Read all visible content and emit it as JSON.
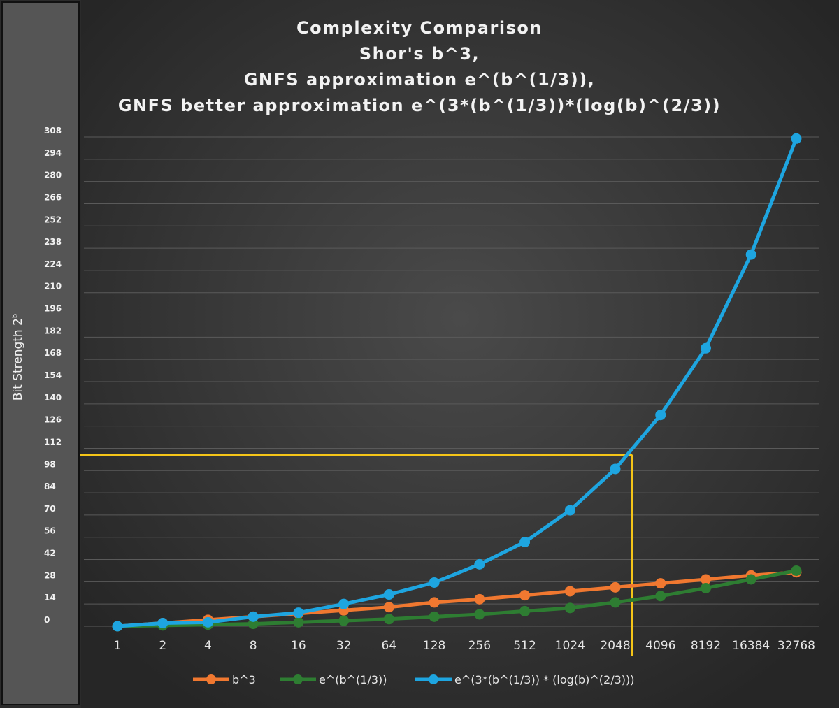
{
  "chart_data": {
    "type": "line",
    "title": [
      "Complexity Comparison",
      "Shor's b^3,",
      "GNFS approximation e^(b^(1/3)),",
      "GNFS better approximation e^(3*(b^(1/3))*(log(b)^(2/3))"
    ],
    "ylabel": "Bit Strength 2",
    "ylabel_sup": "b",
    "xlabel": "",
    "categories": [
      "1",
      "2",
      "4",
      "8",
      "16",
      "32",
      "64",
      "128",
      "256",
      "512",
      "1024",
      "2048",
      "4096",
      "8192",
      "16384",
      "32768"
    ],
    "yticks": [
      0,
      14,
      28,
      42,
      56,
      70,
      84,
      98,
      112,
      126,
      140,
      154,
      168,
      182,
      196,
      210,
      224,
      238,
      252,
      266,
      280,
      294,
      308
    ],
    "ylim": [
      0,
      308
    ],
    "grid": true,
    "legend_position": "bottom",
    "series": [
      {
        "name": "b^3",
        "color": "#f07830",
        "values": [
          0,
          2,
          4,
          6,
          8,
          10,
          12,
          15,
          17,
          19.5,
          22,
          24.5,
          27,
          29.5,
          32,
          34
        ]
      },
      {
        "name": "e^(b^(1/3))",
        "color": "#2e7d32",
        "values": [
          0,
          0.5,
          1,
          1.5,
          2.5,
          3.5,
          4.5,
          6,
          7.5,
          9.5,
          11.5,
          15,
          19,
          24,
          29.5,
          35
        ]
      },
      {
        "name": "e^(3*(b^(1/3)) * (log(b)^(2/3)))",
        "color": "#1ea5e0",
        "values": [
          0,
          2,
          2.5,
          6,
          8.5,
          14,
          20,
          27.5,
          39,
          53,
          73,
          99,
          133,
          175,
          234,
          307
        ]
      }
    ],
    "annotation": {
      "color": "#f5c518",
      "y": 108,
      "x_category": "2048"
    }
  }
}
